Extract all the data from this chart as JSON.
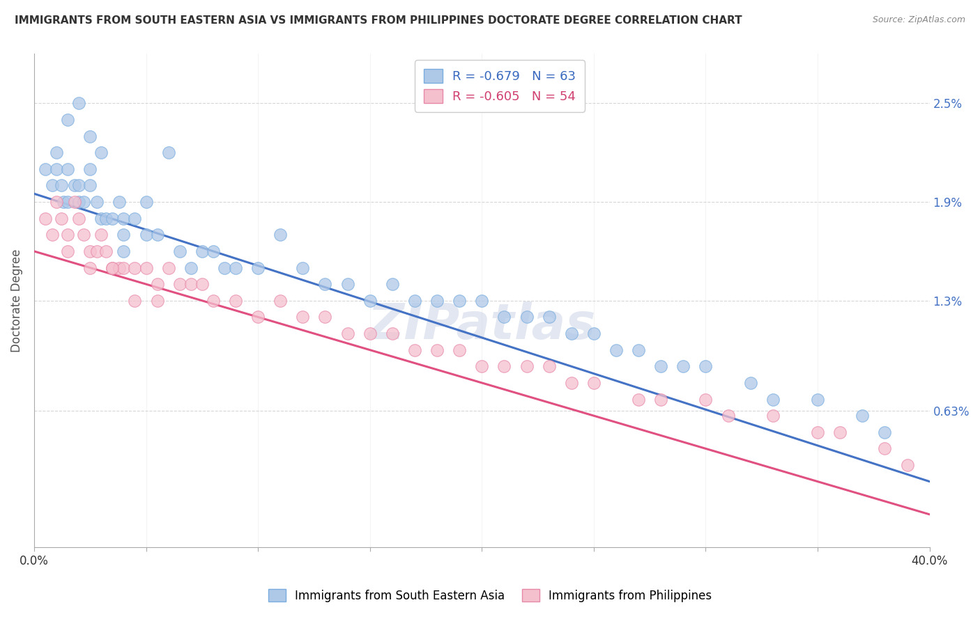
{
  "title": "IMMIGRANTS FROM SOUTH EASTERN ASIA VS IMMIGRANTS FROM PHILIPPINES DOCTORATE DEGREE CORRELATION CHART",
  "source": "Source: ZipAtlas.com",
  "ylabel": "Doctorate Degree",
  "yticks": [
    0.0063,
    0.013,
    0.019,
    0.025
  ],
  "ytick_labels": [
    "0.63%",
    "1.3%",
    "1.9%",
    "2.5%"
  ],
  "xmin": 0.0,
  "xmax": 0.4,
  "ymin": -0.002,
  "ymax": 0.028,
  "legend1_R": "-0.679",
  "legend1_N": "63",
  "legend2_R": "-0.605",
  "legend2_N": "54",
  "blue_line_x": [
    0.0,
    0.4
  ],
  "blue_line_y": [
    0.0195,
    0.002
  ],
  "pink_line_x": [
    0.0,
    0.4
  ],
  "pink_line_y": [
    0.016,
    0.0
  ],
  "blue_scatter_x": [
    0.005,
    0.008,
    0.01,
    0.01,
    0.012,
    0.013,
    0.015,
    0.015,
    0.018,
    0.02,
    0.02,
    0.022,
    0.025,
    0.025,
    0.028,
    0.03,
    0.032,
    0.035,
    0.038,
    0.04,
    0.04,
    0.045,
    0.05,
    0.05,
    0.055,
    0.06,
    0.065,
    0.07,
    0.075,
    0.08,
    0.085,
    0.09,
    0.1,
    0.11,
    0.12,
    0.13,
    0.14,
    0.15,
    0.16,
    0.17,
    0.18,
    0.19,
    0.2,
    0.21,
    0.22,
    0.23,
    0.24,
    0.25,
    0.26,
    0.27,
    0.28,
    0.29,
    0.3,
    0.32,
    0.33,
    0.35,
    0.37,
    0.38,
    0.015,
    0.02,
    0.025,
    0.03,
    0.04
  ],
  "blue_scatter_y": [
    0.021,
    0.02,
    0.022,
    0.021,
    0.02,
    0.019,
    0.021,
    0.019,
    0.02,
    0.02,
    0.019,
    0.019,
    0.021,
    0.02,
    0.019,
    0.018,
    0.018,
    0.018,
    0.019,
    0.018,
    0.017,
    0.018,
    0.019,
    0.017,
    0.017,
    0.022,
    0.016,
    0.015,
    0.016,
    0.016,
    0.015,
    0.015,
    0.015,
    0.017,
    0.015,
    0.014,
    0.014,
    0.013,
    0.014,
    0.013,
    0.013,
    0.013,
    0.013,
    0.012,
    0.012,
    0.012,
    0.011,
    0.011,
    0.01,
    0.01,
    0.009,
    0.009,
    0.009,
    0.008,
    0.007,
    0.007,
    0.006,
    0.005,
    0.024,
    0.025,
    0.023,
    0.022,
    0.016
  ],
  "pink_scatter_x": [
    0.005,
    0.008,
    0.01,
    0.012,
    0.015,
    0.018,
    0.02,
    0.022,
    0.025,
    0.028,
    0.03,
    0.032,
    0.035,
    0.038,
    0.04,
    0.045,
    0.05,
    0.055,
    0.06,
    0.065,
    0.07,
    0.075,
    0.08,
    0.09,
    0.1,
    0.11,
    0.12,
    0.13,
    0.14,
    0.15,
    0.16,
    0.17,
    0.18,
    0.19,
    0.2,
    0.21,
    0.22,
    0.23,
    0.24,
    0.25,
    0.27,
    0.28,
    0.3,
    0.31,
    0.33,
    0.35,
    0.36,
    0.38,
    0.39,
    0.015,
    0.025,
    0.035,
    0.045,
    0.055
  ],
  "pink_scatter_y": [
    0.018,
    0.017,
    0.019,
    0.018,
    0.017,
    0.019,
    0.018,
    0.017,
    0.016,
    0.016,
    0.017,
    0.016,
    0.015,
    0.015,
    0.015,
    0.015,
    0.015,
    0.014,
    0.015,
    0.014,
    0.014,
    0.014,
    0.013,
    0.013,
    0.012,
    0.013,
    0.012,
    0.012,
    0.011,
    0.011,
    0.011,
    0.01,
    0.01,
    0.01,
    0.009,
    0.009,
    0.009,
    0.009,
    0.008,
    0.008,
    0.007,
    0.007,
    0.007,
    0.006,
    0.006,
    0.005,
    0.005,
    0.004,
    0.003,
    0.016,
    0.015,
    0.015,
    0.013,
    0.013
  ]
}
